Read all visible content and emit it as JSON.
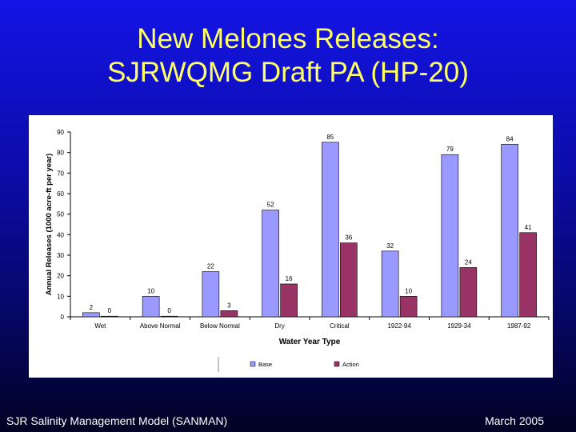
{
  "slide": {
    "title_line1": "New Melones Releases:",
    "title_line2": "SJRWQMG Draft PA (HP-20)",
    "footer_left": "SJR Salinity Management Model (SANMAN)",
    "footer_right": "March 2005",
    "background_color": "#0c0ca8",
    "title_color": "#ffff66"
  },
  "chart_data": {
    "type": "bar",
    "xlabel": "Water Year Type",
    "ylabel": "Annual Releases (1000 acre-ft per year)",
    "ylim": [
      0,
      90
    ],
    "yticks": [
      0,
      10,
      20,
      30,
      40,
      50,
      60,
      70,
      80,
      90
    ],
    "grid": false,
    "legend_position": "bottom",
    "categories": [
      "Wet",
      "Above Normal",
      "Below Normal",
      "Dry",
      "Critical",
      "1922-94",
      "1929-34",
      "1987-92"
    ],
    "series": [
      {
        "name": "Base",
        "color": "#9999ff",
        "values": [
          2,
          10,
          22,
          52,
          85,
          32,
          79,
          84
        ]
      },
      {
        "name": "Action",
        "color": "#993366",
        "values": [
          0,
          0,
          3,
          16,
          36,
          10,
          24,
          41
        ]
      }
    ]
  }
}
